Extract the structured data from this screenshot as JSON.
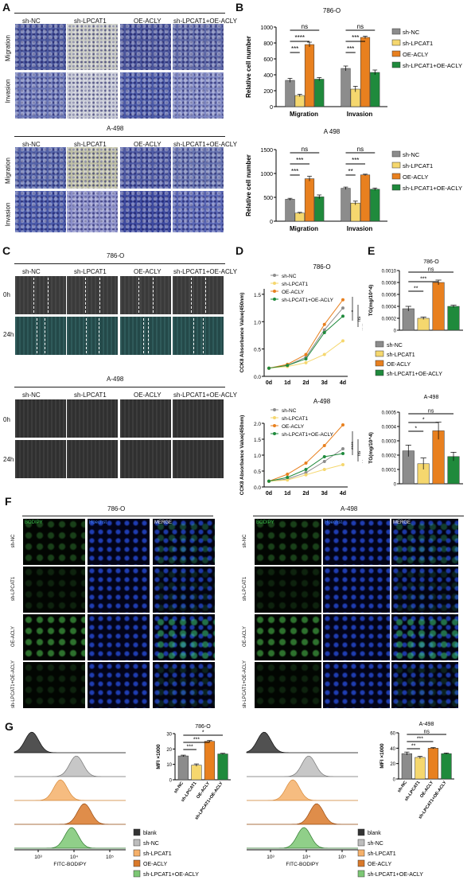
{
  "panels": {
    "A": {
      "letter": "A",
      "cols": [
        "sh-NC",
        "sh-LPCAT1",
        "OE-ACLY",
        "sh-LPCAT1+OE-ACLY"
      ],
      "rows": [
        "Migration",
        "Invasion"
      ],
      "title2": "A-498"
    },
    "B": {
      "letter": "B"
    },
    "C": {
      "letter": "C",
      "title1": "786-O",
      "title2": "A-498",
      "cols": [
        "sh-NC",
        "sh-LPCAT1",
        "OE-ACLY",
        "sh-LPCAT1+OE-ACLY"
      ],
      "rows": [
        "0h",
        "24h"
      ]
    },
    "D": {
      "letter": "D"
    },
    "E": {
      "letter": "E"
    },
    "F": {
      "letter": "F",
      "title1": "786-O",
      "title2": "A-498",
      "cols": [
        "BODIPY",
        "Hoechst",
        "MERGE"
      ],
      "rows": [
        "sh-NC",
        "sh-LPCAT1",
        "OE-ACLY",
        "sh-LPCAT1+OE-ACLY"
      ]
    },
    "G": {
      "letter": "G",
      "xlabel": "FITC-BODIPY",
      "legend": [
        "blank",
        "sh-NC",
        "sh-LPCAT1",
        "OE-ACLY",
        "sh-LPCAT1+OE-ACLY"
      ],
      "ticks": [
        "10³",
        "10⁴",
        "10⁵"
      ]
    }
  },
  "colors": {
    "shNC": "#8c8c8c",
    "shLPCAT1": "#f5d76e",
    "OEACLY": "#e8801f",
    "combo": "#1f8a3c",
    "blank": "#333333"
  },
  "chart_data": [
    {
      "id": "B1",
      "type": "bar",
      "title": "786-O",
      "categories": [
        "Migration",
        "Invasion"
      ],
      "ylabel": "Relative cell number",
      "ylim": [
        0,
        1000
      ],
      "yticks": [
        0,
        200,
        400,
        600,
        800,
        1000
      ],
      "series": [
        {
          "name": "sh-NC",
          "values": [
            330,
            480
          ],
          "err": [
            25,
            30
          ]
        },
        {
          "name": "sh-LPCAT1",
          "values": [
            140,
            220
          ],
          "err": [
            15,
            35
          ]
        },
        {
          "name": "OE-ACLY",
          "values": [
            780,
            870
          ],
          "err": [
            30,
            15
          ]
        },
        {
          "name": "sh-LPCAT1+OE-ACLY",
          "values": [
            345,
            430
          ],
          "err": [
            20,
            30
          ]
        }
      ],
      "legend": [
        "sh-NC",
        "sh-LPCAT1",
        "OE-ACLY",
        "sh-LPCAT1+OE-ACLY"
      ],
      "sig": [
        {
          "group": 0,
          "a": 0,
          "b": 1,
          "label": "***",
          "level": 1
        },
        {
          "group": 0,
          "a": 0,
          "b": 2,
          "label": "****",
          "level": 2
        },
        {
          "group": 0,
          "a": 0,
          "b": 3,
          "label": "ns",
          "level": 3
        },
        {
          "group": 1,
          "a": 0,
          "b": 1,
          "label": "***",
          "level": 1
        },
        {
          "group": 1,
          "a": 0,
          "b": 2,
          "label": "***",
          "level": 2
        },
        {
          "group": 1,
          "a": 0,
          "b": 3,
          "label": "ns",
          "level": 3
        }
      ]
    },
    {
      "id": "B2",
      "type": "bar",
      "title": "A 498",
      "categories": [
        "Migration",
        "Invasion"
      ],
      "ylabel": "Relative cell number",
      "ylim": [
        0,
        1500
      ],
      "yticks": [
        0,
        500,
        1000,
        1500
      ],
      "series": [
        {
          "name": "sh-NC",
          "values": [
            460,
            690
          ],
          "err": [
            20,
            25
          ]
        },
        {
          "name": "sh-LPCAT1",
          "values": [
            170,
            380
          ],
          "err": [
            15,
            40
          ]
        },
        {
          "name": "OE-ACLY",
          "values": [
            890,
            970
          ],
          "err": [
            50,
            15
          ]
        },
        {
          "name": "sh-LPCAT1+OE-ACLY",
          "values": [
            510,
            670
          ],
          "err": [
            40,
            25
          ]
        }
      ],
      "legend": [
        "sh-NC",
        "sh-LPCAT1",
        "OE-ACLY",
        "sh-LPCAT1+OE-ACLY"
      ],
      "sig": [
        {
          "group": 0,
          "a": 0,
          "b": 1,
          "label": "***",
          "level": 1
        },
        {
          "group": 0,
          "a": 0,
          "b": 2,
          "label": "***",
          "level": 2
        },
        {
          "group": 0,
          "a": 0,
          "b": 3,
          "label": "ns",
          "level": 3
        },
        {
          "group": 1,
          "a": 0,
          "b": 1,
          "label": "**",
          "level": 1
        },
        {
          "group": 1,
          "a": 0,
          "b": 2,
          "label": "***",
          "level": 2
        },
        {
          "group": 1,
          "a": 0,
          "b": 3,
          "label": "ns",
          "level": 3
        }
      ]
    },
    {
      "id": "D1",
      "type": "line",
      "title": "786-O",
      "categories": [
        "0d",
        "1d",
        "2d",
        "3d",
        "4d"
      ],
      "ylabel": "CCK8 Absorbance Value(450nm)",
      "ylim": [
        0,
        1.6
      ],
      "yticks": [
        0.0,
        0.5,
        1.0,
        1.5
      ],
      "series": [
        {
          "name": "sh-NC",
          "values": [
            0.15,
            0.2,
            0.35,
            0.85,
            1.25
          ]
        },
        {
          "name": "sh-LPCAT1",
          "values": [
            0.15,
            0.18,
            0.25,
            0.4,
            0.65
          ]
        },
        {
          "name": "OE-ACLY",
          "values": [
            0.15,
            0.22,
            0.4,
            0.95,
            1.4
          ]
        },
        {
          "name": "sh-LPCAT1+OE-ACLY",
          "values": [
            0.15,
            0.2,
            0.32,
            0.8,
            1.1
          ]
        }
      ],
      "sig": [
        "*",
        "ns",
        "****"
      ]
    },
    {
      "id": "D2",
      "type": "line",
      "title": "A-498",
      "categories": [
        "0d",
        "1d",
        "2d",
        "3d",
        "4d"
      ],
      "ylabel": "CCK8 Absorbance Value(450nm)",
      "ylim": [
        0,
        2.0
      ],
      "yticks": [
        0.0,
        0.5,
        1.0,
        1.5,
        2.0
      ],
      "series": [
        {
          "name": "sh-NC",
          "values": [
            0.18,
            0.25,
            0.45,
            0.8,
            1.2
          ]
        },
        {
          "name": "sh-LPCAT1",
          "values": [
            0.18,
            0.22,
            0.38,
            0.55,
            0.7
          ]
        },
        {
          "name": "OE-ACLY",
          "values": [
            0.18,
            0.4,
            0.75,
            1.3,
            1.95
          ]
        },
        {
          "name": "sh-LPCAT1+OE-ACLY",
          "values": [
            0.18,
            0.3,
            0.55,
            0.95,
            1.05
          ]
        }
      ],
      "sig": [
        "****",
        "ns",
        "**"
      ]
    },
    {
      "id": "E1",
      "type": "bar",
      "title": "786-O",
      "categories": [
        "sh-NC",
        "sh-LPCAT1",
        "OE-ACLY",
        "sh-LPCAT1+OE-ACLY"
      ],
      "ylabel": "TG(mg/10^4)",
      "ylim": [
        0,
        0.001
      ],
      "yticks": [
        0,
        0.0002,
        0.0004,
        0.0006,
        0.0008,
        0.001
      ],
      "yticklabels": [
        "0",
        "0.0002",
        "0.0004",
        "0.0006",
        "0.0008",
        "0.0010"
      ],
      "values": [
        0.00036,
        0.0002,
        0.0008,
        0.0004
      ],
      "err": [
        4e-05,
        2e-05,
        4e-05,
        2e-05
      ],
      "sig": [
        {
          "a": 0,
          "b": 1,
          "label": "**",
          "level": 1
        },
        {
          "a": 0,
          "b": 2,
          "label": "***",
          "level": 2
        },
        {
          "a": 0,
          "b": 3,
          "label": "ns",
          "level": 3
        }
      ]
    },
    {
      "id": "E2",
      "type": "bar",
      "title": "A-498",
      "categories": [
        "sh-NC",
        "sh-LPCAT1",
        "OE-ACLY",
        "sh-LPCAT1+OE-ACLY"
      ],
      "ylabel": "TG(mg/10^4)",
      "ylim": [
        0,
        0.0005
      ],
      "yticks": [
        0,
        0.0001,
        0.0002,
        0.0003,
        0.0004,
        0.0005
      ],
      "yticklabels": [
        "0",
        "0.0001",
        "0.0002",
        "0.0003",
        "0.0004",
        "0.0005"
      ],
      "values": [
        0.00023,
        0.00014,
        0.00037,
        0.00019
      ],
      "err": [
        4e-05,
        4e-05,
        6e-05,
        3e-05
      ],
      "sig": [
        {
          "a": 0,
          "b": 1,
          "label": "*",
          "level": 1
        },
        {
          "a": 0,
          "b": 2,
          "label": "*",
          "level": 2
        },
        {
          "a": 0,
          "b": 3,
          "label": "ns",
          "level": 3
        }
      ]
    },
    {
      "id": "G1",
      "type": "bar",
      "title": "786-O",
      "categories": [
        "sh-NC",
        "sh-LPCAT1",
        "OE-ACLY",
        "sh-LPCAT1+OE-ACLY"
      ],
      "ylabel": "MFI ×1000",
      "ylim": [
        0,
        30
      ],
      "yticks": [
        0,
        10,
        20,
        30
      ],
      "values": [
        15.5,
        9.5,
        25,
        16.8
      ],
      "err": [
        0.5,
        0.8,
        0.5,
        0.4
      ],
      "sig": [
        {
          "a": 0,
          "b": 1,
          "label": "***",
          "level": 1
        },
        {
          "a": 0,
          "b": 2,
          "label": "***",
          "level": 2
        },
        {
          "a": 0,
          "b": 3,
          "label": "*",
          "level": 3
        }
      ]
    },
    {
      "id": "G2",
      "type": "bar",
      "title": "A-498",
      "categories": [
        "sh-NC",
        "sh-LPCAT1",
        "OE-ACLY",
        "sh-LPCAT1+OE-ACLY"
      ],
      "ylabel": "MFI ×1000",
      "ylim": [
        0,
        60
      ],
      "yticks": [
        0,
        20,
        40,
        60
      ],
      "values": [
        33,
        28,
        40,
        33
      ],
      "err": [
        2,
        1.5,
        0.8,
        0.8
      ],
      "sig": [
        {
          "a": 0,
          "b": 1,
          "label": "**",
          "level": 1
        },
        {
          "a": 0,
          "b": 2,
          "label": "***",
          "level": 2
        },
        {
          "a": 0,
          "b": 3,
          "label": "ns",
          "level": 3
        }
      ]
    }
  ]
}
